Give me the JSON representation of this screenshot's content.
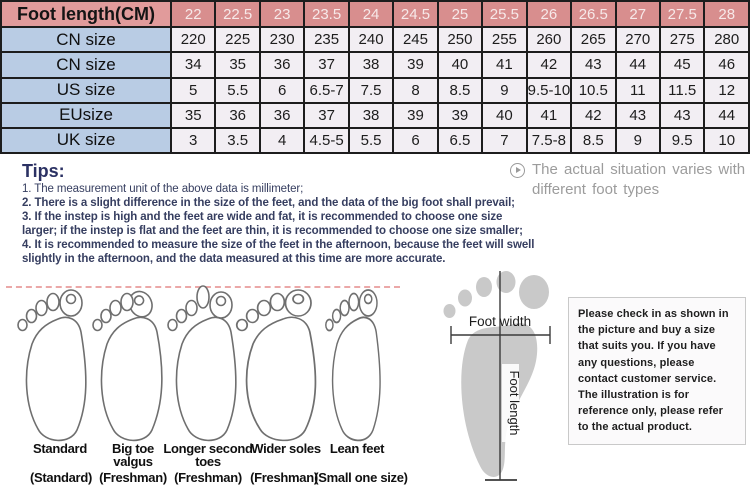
{
  "size_table": {
    "header": {
      "label": "Foot length(CM)",
      "values": [
        "22",
        "22.5",
        "23",
        "23.5",
        "24",
        "24.5",
        "25",
        "25.5",
        "26",
        "26.5",
        "27",
        "27.5",
        "28"
      ]
    },
    "rows": [
      {
        "label": "CN size",
        "values": [
          "220",
          "225",
          "230",
          "235",
          "240",
          "245",
          "250",
          "255",
          "260",
          "265",
          "270",
          "275",
          "280"
        ]
      },
      {
        "label": "CN size",
        "values": [
          "34",
          "35",
          "36",
          "37",
          "38",
          "39",
          "40",
          "41",
          "42",
          "43",
          "44",
          "45",
          "46"
        ]
      },
      {
        "label": "US size",
        "values": [
          "5",
          "5.5",
          "6",
          "6.5-7",
          "7.5",
          "8",
          "8.5",
          "9",
          "9.5-10",
          "10.5",
          "11",
          "11.5",
          "12"
        ]
      },
      {
        "label": "EUsize",
        "values": [
          "35",
          "36",
          "36",
          "37",
          "38",
          "39",
          "39",
          "40",
          "41",
          "42",
          "43",
          "43",
          "44"
        ]
      },
      {
        "label": "UK size",
        "values": [
          "3",
          "3.5",
          "4",
          "4.5-5",
          "5.5",
          "6",
          "6.5",
          "7",
          "7.5-8",
          "8.5",
          "9",
          "9.5",
          "10"
        ]
      }
    ]
  },
  "tips": {
    "heading": "Tips:",
    "items": [
      "1. The measurement unit of the above data is millimeter;",
      "2. There is a slight difference in the size of the feet, and the data of the big foot shall prevail;",
      "3. If the instep is high and the feet are wide and fat, it is recommended to choose one size larger; if the instep is flat and the feet are thin, it is recommended to choose one size smaller;",
      "4. It is recommended to measure the size of the feet in the afternoon, because the feet will swell slightly in the afternoon, and the data measured at this time are more accurate."
    ]
  },
  "side_note": {
    "icon": "play-circle-icon",
    "text": "The actual situation varies with different foot types"
  },
  "foot_types": [
    {
      "name": "Standard",
      "sub": "(Standard)"
    },
    {
      "name": "Big toe valgus",
      "sub": "(Freshman)"
    },
    {
      "name": "Longer second toes",
      "sub": "(Freshman)"
    },
    {
      "name": "Wider soles",
      "sub": "(Freshman)"
    },
    {
      "name": "Lean feet",
      "sub": "(Small one size)"
    }
  ],
  "measurement_diagram": {
    "width_label": "Foot width",
    "length_label": "Foot length"
  },
  "notice_box": {
    "text": "Please check in as shown in the picture and buy a size that suits you. If you have any questions, please contact customer service. The illustration is for reference only, please refer to the actual product."
  },
  "colors": {
    "header_bg": "#d88e8e",
    "header_label_bg": "#e19b9b",
    "label_bg": "#b9cce4",
    "cell_bg": "#f2eef3",
    "table_border": "#1d1d1d",
    "tips_text": "#363e60",
    "side_note_text": "#9c9c9c",
    "toe_line": "#eba8a8",
    "footprint_gray": "#c9c9c9"
  }
}
